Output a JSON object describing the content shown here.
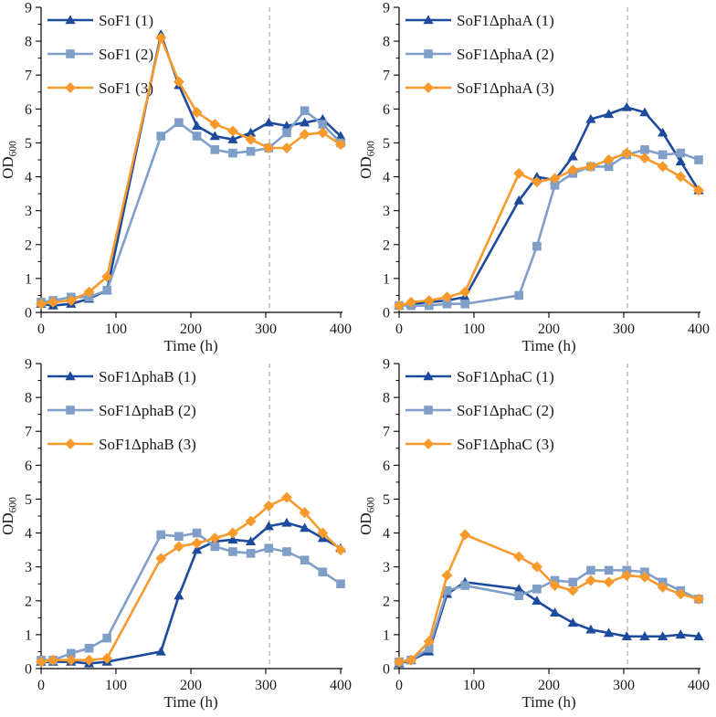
{
  "figure": {
    "background": "#ffffff",
    "layout": "2x2-grid",
    "guide_line": {
      "x": 305,
      "color": "#a8a8a8",
      "style": "dashed"
    },
    "palette": {
      "series1_dark_blue": "#1c4a9c",
      "series2_light_blue": "#7f9ec8",
      "series3_orange": "#f8992c"
    }
  },
  "chart_data": [
    {
      "type": "line",
      "title": "",
      "xlabel": "Time (h)",
      "ylabel_main": "OD",
      "ylabel_sub": "600",
      "xlim": [
        0,
        400
      ],
      "ylim": [
        0,
        9
      ],
      "x_ticks": [
        0,
        100,
        200,
        300,
        400
      ],
      "y_ticks": [
        0,
        1,
        2,
        3,
        4,
        5,
        6,
        7,
        8,
        9
      ],
      "y_minor_step": 0.5,
      "grid": false,
      "legend_position": "top-left",
      "guide_x": 305,
      "x": [
        0,
        16,
        40,
        64,
        88,
        160,
        184,
        208,
        232,
        256,
        280,
        304,
        328,
        352,
        376,
        400
      ],
      "series": [
        {
          "name": "SoF1 (1)",
          "color": "#1c4a9c",
          "marker": "triangle",
          "values": [
            0.25,
            0.2,
            0.25,
            0.4,
            0.65,
            8.2,
            6.7,
            5.5,
            5.2,
            5.1,
            5.3,
            5.6,
            5.5,
            5.6,
            5.7,
            5.2
          ]
        },
        {
          "name": "SoF1 (2)",
          "color": "#7f9ec8",
          "marker": "square",
          "values": [
            0.3,
            0.35,
            0.45,
            0.45,
            0.65,
            5.2,
            5.6,
            5.2,
            4.8,
            4.7,
            4.75,
            4.85,
            5.3,
            5.95,
            5.55,
            5.0
          ]
        },
        {
          "name": "SoF1 (3)",
          "color": "#f8992c",
          "marker": "diamond",
          "values": [
            0.25,
            0.3,
            0.35,
            0.6,
            1.05,
            8.1,
            6.8,
            5.9,
            5.55,
            5.35,
            5.1,
            4.85,
            4.85,
            5.25,
            5.3,
            4.95
          ]
        }
      ]
    },
    {
      "type": "line",
      "title": "",
      "xlabel": "Time (h)",
      "ylabel_main": "OD",
      "ylabel_sub": "600",
      "xlim": [
        0,
        400
      ],
      "ylim": [
        0,
        9
      ],
      "x_ticks": [
        0,
        100,
        200,
        300,
        400
      ],
      "y_ticks": [
        0,
        1,
        2,
        3,
        4,
        5,
        6,
        7,
        8,
        9
      ],
      "y_minor_step": 0.5,
      "grid": false,
      "legend_position": "top-left",
      "guide_x": 305,
      "x": [
        0,
        16,
        40,
        64,
        88,
        160,
        184,
        208,
        232,
        256,
        280,
        304,
        328,
        352,
        376,
        400
      ],
      "series": [
        {
          "name": "SoF1ΔphaA (1)",
          "color": "#1c4a9c",
          "marker": "triangle",
          "values": [
            0.2,
            0.25,
            0.3,
            0.35,
            0.45,
            3.3,
            4.0,
            3.9,
            4.6,
            5.7,
            5.85,
            6.05,
            5.9,
            5.3,
            4.45,
            3.6
          ]
        },
        {
          "name": "SoF1ΔphaA (2)",
          "color": "#7f9ec8",
          "marker": "square",
          "values": [
            0.2,
            0.2,
            0.2,
            0.25,
            0.25,
            0.5,
            1.95,
            3.75,
            4.1,
            4.3,
            4.3,
            4.65,
            4.8,
            4.65,
            4.7,
            4.5
          ]
        },
        {
          "name": "SoF1ΔphaA (3)",
          "color": "#f8992c",
          "marker": "diamond",
          "values": [
            0.2,
            0.3,
            0.35,
            0.45,
            0.6,
            4.1,
            3.85,
            3.95,
            4.2,
            4.3,
            4.5,
            4.7,
            4.55,
            4.3,
            4.0,
            3.6
          ]
        }
      ]
    },
    {
      "type": "line",
      "title": "",
      "xlabel": "Time (h)",
      "ylabel_main": "OD",
      "ylabel_sub": "600",
      "xlim": [
        0,
        400
      ],
      "ylim": [
        0,
        9
      ],
      "x_ticks": [
        0,
        100,
        200,
        300,
        400
      ],
      "y_ticks": [
        0,
        1,
        2,
        3,
        4,
        5,
        6,
        7,
        8,
        9
      ],
      "y_minor_step": 0.5,
      "grid": false,
      "legend_position": "top-left",
      "guide_x": 305,
      "x": [
        0,
        16,
        40,
        64,
        88,
        160,
        184,
        208,
        232,
        256,
        280,
        304,
        328,
        352,
        376,
        400
      ],
      "series": [
        {
          "name": "SoF1ΔphaB (1)",
          "color": "#1c4a9c",
          "marker": "triangle",
          "values": [
            0.2,
            0.2,
            0.2,
            0.15,
            0.2,
            0.5,
            2.15,
            3.5,
            3.75,
            3.8,
            3.75,
            4.2,
            4.3,
            4.15,
            3.85,
            3.55
          ]
        },
        {
          "name": "SoF1ΔphaB (2)",
          "color": "#7f9ec8",
          "marker": "square",
          "values": [
            0.25,
            0.25,
            0.45,
            0.6,
            0.9,
            3.95,
            3.9,
            4.0,
            3.6,
            3.45,
            3.4,
            3.55,
            3.45,
            3.2,
            2.85,
            2.5
          ]
        },
        {
          "name": "SoF1ΔphaB (3)",
          "color": "#f8992c",
          "marker": "diamond",
          "values": [
            0.2,
            0.25,
            0.25,
            0.25,
            0.3,
            3.25,
            3.6,
            3.7,
            3.85,
            4.0,
            4.35,
            4.8,
            5.05,
            4.6,
            4.0,
            3.5
          ]
        }
      ]
    },
    {
      "type": "line",
      "title": "",
      "xlabel": "Time (h)",
      "ylabel_main": "OD",
      "ylabel_sub": "600",
      "xlim": [
        0,
        400
      ],
      "ylim": [
        0,
        9
      ],
      "x_ticks": [
        0,
        100,
        200,
        300,
        400
      ],
      "y_ticks": [
        0,
        1,
        2,
        3,
        4,
        5,
        6,
        7,
        8,
        9
      ],
      "y_minor_step": 0.5,
      "grid": false,
      "legend_position": "top-left",
      "guide_x": 305,
      "x": [
        0,
        16,
        40,
        64,
        88,
        160,
        184,
        208,
        232,
        256,
        280,
        304,
        328,
        352,
        376,
        400
      ],
      "series": [
        {
          "name": "SoF1ΔphaC (1)",
          "color": "#1c4a9c",
          "marker": "triangle",
          "values": [
            0.15,
            0.25,
            0.5,
            2.2,
            2.55,
            2.35,
            2.0,
            1.65,
            1.35,
            1.15,
            1.05,
            0.95,
            0.95,
            0.95,
            1.0,
            0.95
          ]
        },
        {
          "name": "SoF1ΔphaC (2)",
          "color": "#7f9ec8",
          "marker": "square",
          "values": [
            0.2,
            0.25,
            0.6,
            2.3,
            2.45,
            2.15,
            2.35,
            2.6,
            2.55,
            2.9,
            2.9,
            2.9,
            2.85,
            2.55,
            2.3,
            2.05
          ]
        },
        {
          "name": "SoF1ΔphaC (3)",
          "color": "#f8992c",
          "marker": "diamond",
          "values": [
            0.2,
            0.25,
            0.8,
            2.75,
            3.95,
            3.3,
            3.0,
            2.45,
            2.3,
            2.6,
            2.55,
            2.75,
            2.7,
            2.4,
            2.2,
            2.05
          ]
        }
      ]
    }
  ]
}
